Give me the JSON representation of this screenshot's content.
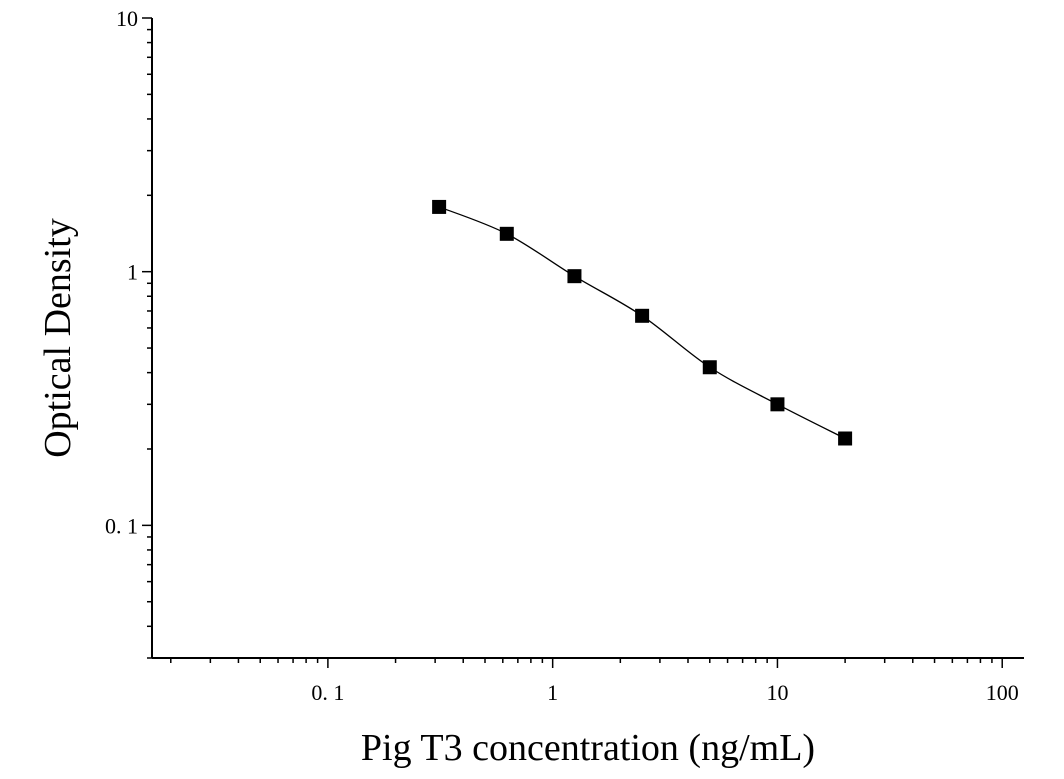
{
  "chart_data": {
    "type": "scatter",
    "title": "",
    "xlabel": "Pig T3 concentration (ng/mL)",
    "ylabel": "Optical Density",
    "x_scale": "log",
    "y_scale": "log",
    "xlim": [
      0.0165,
      125
    ],
    "ylim": [
      0.03,
      10
    ],
    "x_ticks": [
      {
        "value": 0.1,
        "label": "0. 1"
      },
      {
        "value": 1,
        "label": "1"
      },
      {
        "value": 10,
        "label": "10"
      },
      {
        "value": 100,
        "label": "100"
      }
    ],
    "y_ticks": [
      {
        "value": 0.1,
        "label": "0. 1"
      },
      {
        "value": 1,
        "label": "1"
      },
      {
        "value": 10,
        "label": "10"
      }
    ],
    "grid": false,
    "legend": "none",
    "marker": "square",
    "color": "#000000",
    "series": [
      {
        "x": [
          0.3125,
          0.625,
          1.25,
          2.5,
          5,
          10,
          20
        ],
        "y": [
          1.8,
          1.41,
          0.96,
          0.67,
          0.42,
          0.3,
          0.22
        ]
      }
    ],
    "fit_curve": true
  }
}
